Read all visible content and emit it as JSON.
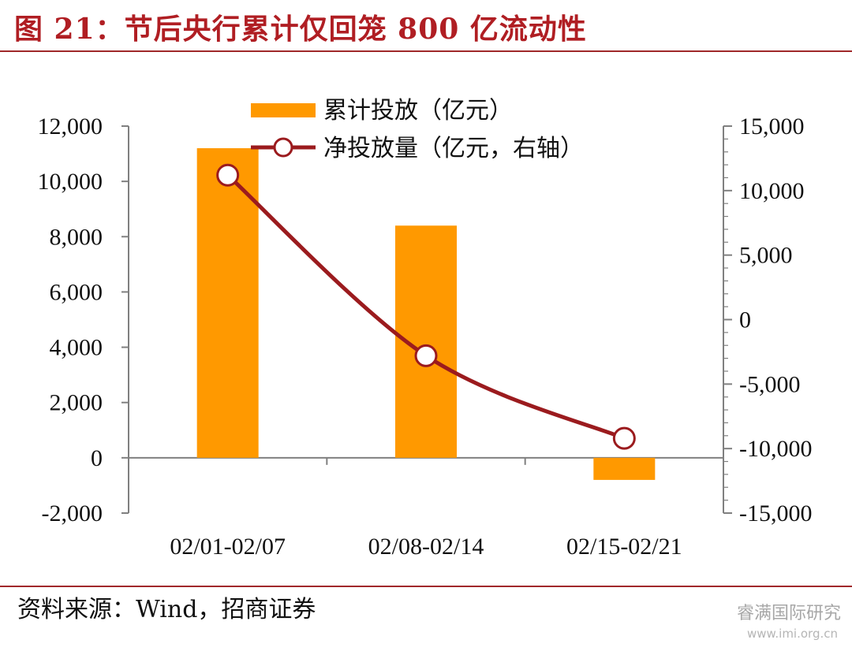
{
  "header": {
    "title": "图 21：节后央行累计仅回笼 800 亿流动性"
  },
  "footer": {
    "source": "资料来源：Wind，招商证券",
    "watermark": "睿满国际研究",
    "watermark_url": "www.imi.org.cn"
  },
  "colors": {
    "bar": "#ff9900",
    "line": "#9b1b1e",
    "title": "#b01e23",
    "axis": "#808080"
  },
  "chart_data": {
    "type": "bar",
    "categories": [
      "02/01-02/07",
      "02/08-02/14",
      "02/15-02/21"
    ],
    "series": [
      {
        "name": "累计投放（亿元）",
        "type": "bar",
        "axis": "left",
        "values": [
          11200,
          8400,
          -800
        ]
      },
      {
        "name": "净投放量（亿元，右轴）",
        "type": "line",
        "axis": "right",
        "values": [
          11200,
          -2800,
          -9200
        ]
      }
    ],
    "y_left": {
      "min": -2000,
      "max": 12000,
      "ticks": [
        "-2,000",
        "0",
        "2,000",
        "4,000",
        "6,000",
        "8,000",
        "10,000",
        "12,000"
      ],
      "tick_values": [
        -2000,
        0,
        2000,
        4000,
        6000,
        8000,
        10000,
        12000
      ]
    },
    "y_right": {
      "min": -15000,
      "max": 15000,
      "ticks": [
        "-15,000",
        "-10,000",
        "-5,000",
        "0",
        "5,000",
        "10,000",
        "15,000"
      ],
      "tick_values": [
        -15000,
        -10000,
        -5000,
        0,
        5000,
        10000,
        15000
      ]
    },
    "legend_position": "top-center",
    "grid": false
  }
}
